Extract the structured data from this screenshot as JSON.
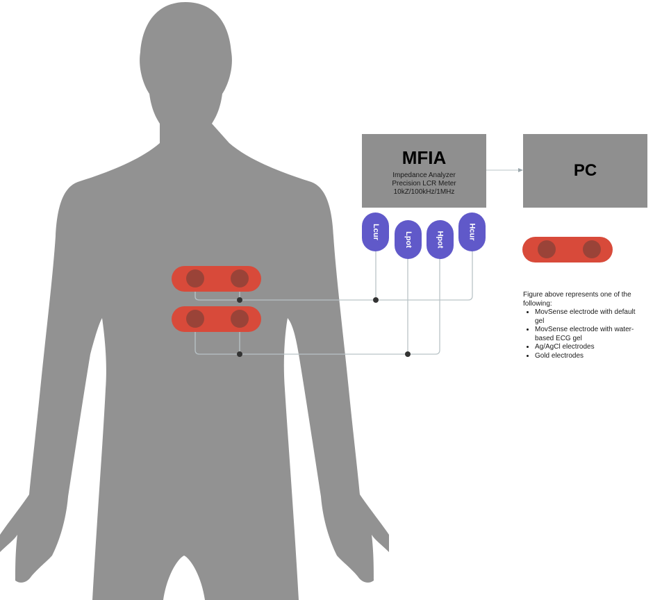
{
  "mfia": {
    "title": "MFIA",
    "lines": [
      "Impedance Analyzer",
      "Precision LCR Meter",
      "10kZ/100kHz/1MHz"
    ]
  },
  "pc": {
    "label": "PC"
  },
  "terminals": [
    {
      "id": "lcur",
      "label": "Lcur"
    },
    {
      "id": "lpot",
      "label": "Lpot"
    },
    {
      "id": "hpot",
      "label": "Hpot"
    },
    {
      "id": "hcur",
      "label": "Hcur"
    }
  ],
  "legend": {
    "intro": "Figure above represents one of the following:",
    "items": [
      "MovSense electrode with default gel",
      "MovSense electrode with water-based ECG gel",
      "Ag/AgCl electrodes",
      "Gold electrodes"
    ]
  },
  "colors": {
    "body": "#929292",
    "box": "#8f8f8f",
    "terminal": "#6059c9",
    "electrode_strip": "#d84a3a",
    "electrode_pad": "#9a4338",
    "wire": "#b9c3c7",
    "junction": "#333333"
  }
}
